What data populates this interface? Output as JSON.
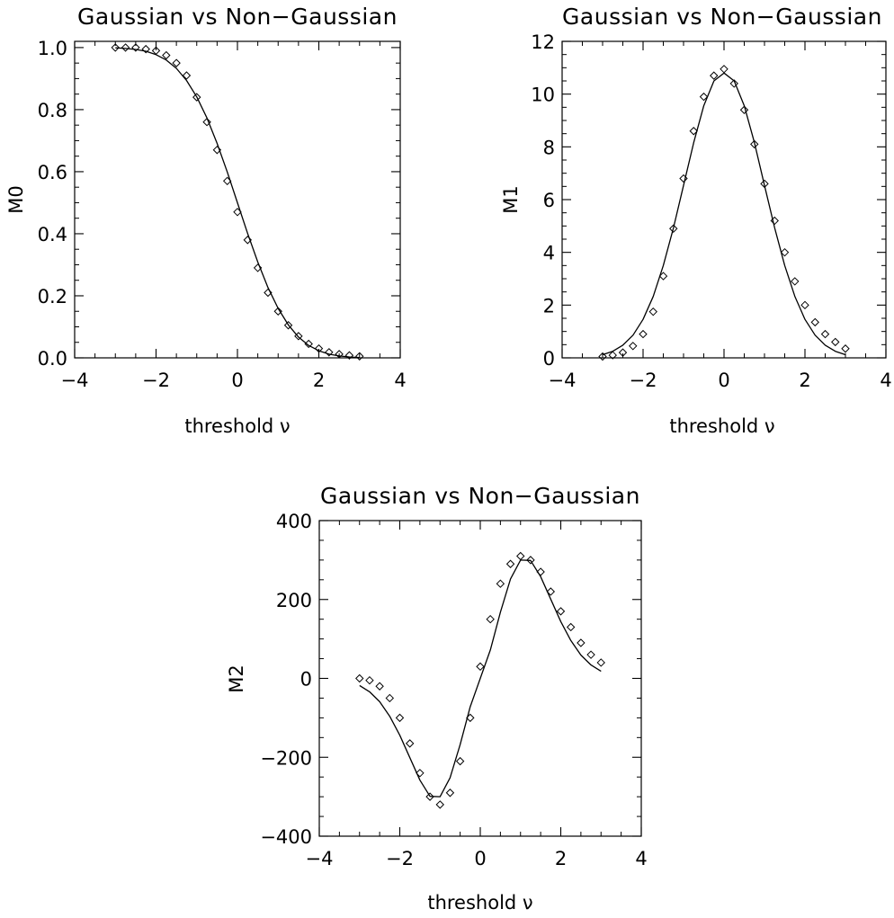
{
  "chart_data": [
    {
      "type": "line",
      "title": "Gaussian vs Non−Gaussian",
      "xlabel": "threshold ν",
      "ylabel": "M0",
      "xlim": [
        -4,
        4
      ],
      "ylim": [
        0,
        1.02
      ],
      "xticks": [
        "−4",
        "−2",
        "0",
        "2",
        "4"
      ],
      "yticks": [
        "0.0",
        "0.2",
        "0.4",
        "0.6",
        "0.8",
        "1.0"
      ],
      "series": [
        {
          "style": "line",
          "x": [
            -3.0,
            -2.75,
            -2.5,
            -2.25,
            -2.0,
            -1.75,
            -1.5,
            -1.25,
            -1.0,
            -0.75,
            -0.5,
            -0.25,
            0.0,
            0.25,
            0.5,
            0.75,
            1.0,
            1.25,
            1.5,
            1.75,
            2.0,
            2.25,
            2.5,
            2.75,
            3.0
          ],
          "y": [
            0.999,
            0.997,
            0.994,
            0.988,
            0.977,
            0.96,
            0.933,
            0.894,
            0.841,
            0.773,
            0.691,
            0.599,
            0.5,
            0.401,
            0.309,
            0.227,
            0.159,
            0.106,
            0.067,
            0.04,
            0.023,
            0.012,
            0.006,
            0.003,
            0.001
          ]
        },
        {
          "style": "diamond",
          "x": [
            -3.0,
            -2.75,
            -2.5,
            -2.25,
            -2.0,
            -1.75,
            -1.5,
            -1.25,
            -1.0,
            -0.75,
            -0.5,
            -0.25,
            0.0,
            0.25,
            0.5,
            0.75,
            1.0,
            1.25,
            1.5,
            1.75,
            2.0,
            2.25,
            2.5,
            2.75,
            3.0
          ],
          "y": [
            1.0,
            1.0,
            1.0,
            0.995,
            0.99,
            0.975,
            0.95,
            0.91,
            0.84,
            0.76,
            0.67,
            0.57,
            0.47,
            0.38,
            0.29,
            0.21,
            0.15,
            0.105,
            0.07,
            0.045,
            0.03,
            0.018,
            0.012,
            0.008,
            0.005
          ]
        }
      ]
    },
    {
      "type": "line",
      "title": "Gaussian vs Non−Gaussian",
      "xlabel": "threshold ν",
      "ylabel": "M1",
      "xlim": [
        -4,
        4
      ],
      "ylim": [
        0,
        12
      ],
      "xticks": [
        "−4",
        "−2",
        "0",
        "2",
        "4"
      ],
      "yticks": [
        "0",
        "2",
        "4",
        "6",
        "8",
        "10",
        "12"
      ],
      "series": [
        {
          "style": "line",
          "x": [
            -3.0,
            -2.75,
            -2.5,
            -2.25,
            -2.0,
            -1.75,
            -1.5,
            -1.25,
            -1.0,
            -0.75,
            -0.5,
            -0.25,
            0.0,
            0.25,
            0.5,
            0.75,
            1.0,
            1.25,
            1.5,
            1.75,
            2.0,
            2.25,
            2.5,
            2.75,
            3.0
          ],
          "y": [
            0.12,
            0.25,
            0.48,
            0.86,
            1.46,
            2.33,
            3.5,
            4.93,
            6.54,
            8.16,
            9.56,
            10.5,
            10.8,
            10.5,
            9.56,
            8.16,
            6.54,
            4.93,
            3.5,
            2.33,
            1.46,
            0.86,
            0.48,
            0.25,
            0.12
          ]
        },
        {
          "style": "diamond",
          "x": [
            -3.0,
            -2.75,
            -2.5,
            -2.25,
            -2.0,
            -1.75,
            -1.5,
            -1.25,
            -1.0,
            -0.75,
            -0.5,
            -0.25,
            0.0,
            0.25,
            0.5,
            0.75,
            1.0,
            1.25,
            1.5,
            1.75,
            2.0,
            2.25,
            2.5,
            2.75,
            3.0
          ],
          "y": [
            0.05,
            0.1,
            0.2,
            0.45,
            0.9,
            1.75,
            3.1,
            4.9,
            6.8,
            8.6,
            9.9,
            10.7,
            10.95,
            10.4,
            9.4,
            8.1,
            6.6,
            5.2,
            4.0,
            2.9,
            2.0,
            1.35,
            0.9,
            0.6,
            0.35
          ]
        }
      ]
    },
    {
      "type": "line",
      "title": "Gaussian vs Non−Gaussian",
      "xlabel": "threshold ν",
      "ylabel": "M2",
      "xlim": [
        -4,
        4
      ],
      "ylim": [
        -400,
        400
      ],
      "xticks": [
        "−4",
        "−2",
        "0",
        "2",
        "4"
      ],
      "yticks": [
        "−400",
        "−200",
        "0",
        "200",
        "400"
      ],
      "series": [
        {
          "style": "line",
          "x": [
            -3.0,
            -2.75,
            -2.5,
            -2.25,
            -2.0,
            -1.75,
            -1.5,
            -1.25,
            -1.0,
            -0.75,
            -0.5,
            -0.25,
            0.0,
            0.25,
            0.5,
            0.75,
            1.0,
            1.25,
            1.5,
            1.75,
            2.0,
            2.25,
            2.5,
            2.75,
            3.0
          ],
          "y": [
            -18,
            -34,
            -59,
            -96,
            -144,
            -201,
            -258,
            -299,
            -300,
            -252,
            -168,
            -72,
            0,
            72,
            168,
            252,
            300,
            299,
            258,
            201,
            144,
            96,
            59,
            34,
            18
          ]
        },
        {
          "style": "diamond",
          "x": [
            -3.0,
            -2.75,
            -2.5,
            -2.25,
            -2.0,
            -1.75,
            -1.5,
            -1.25,
            -1.0,
            -0.75,
            -0.5,
            -0.25,
            0.0,
            0.25,
            0.5,
            0.75,
            1.0,
            1.25,
            1.5,
            1.75,
            2.0,
            2.25,
            2.5,
            2.75,
            3.0
          ],
          "y": [
            0,
            -5,
            -20,
            -50,
            -100,
            -165,
            -240,
            -300,
            -320,
            -290,
            -210,
            -100,
            30,
            150,
            240,
            290,
            310,
            300,
            270,
            220,
            170,
            130,
            90,
            60,
            40
          ]
        }
      ]
    }
  ]
}
